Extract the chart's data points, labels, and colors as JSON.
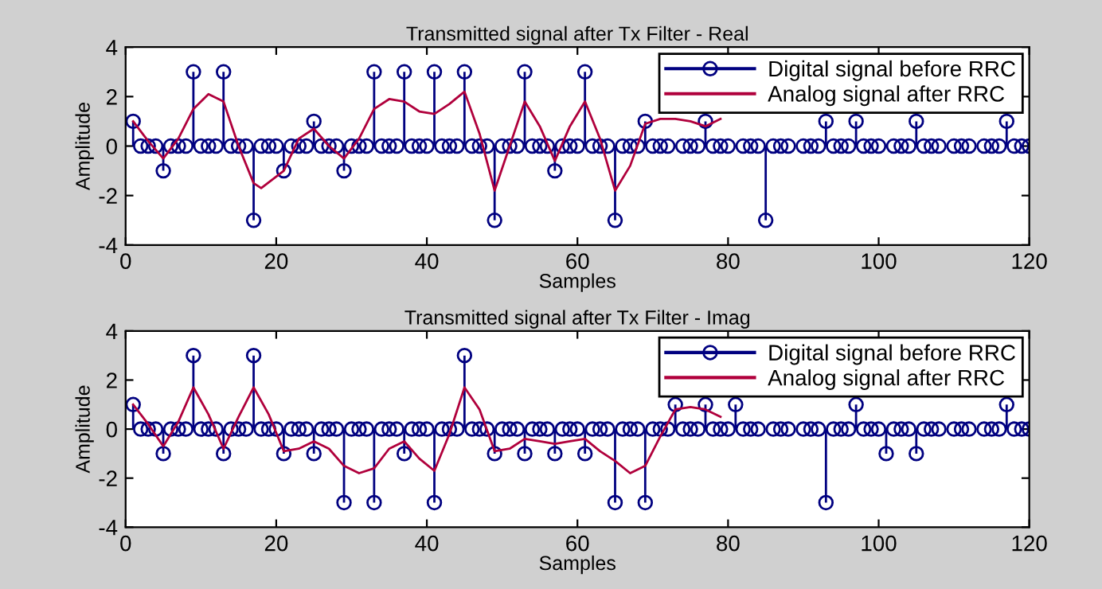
{
  "chart_data": [
    {
      "type": "lollipop",
      "title": "Transmitted signal after Tx Filter - Real",
      "xlabel": "Samples",
      "ylabel": "Amplitude",
      "xlim": [
        0,
        120
      ],
      "xticks": [
        0,
        20,
        40,
        60,
        80,
        100,
        120
      ],
      "ylim": [
        -4,
        4
      ],
      "yticks": [
        -4,
        -2,
        0,
        2,
        4
      ],
      "legend": "top right",
      "series": [
        {
          "name": "Digital signal before RRC",
          "marker": "circle",
          "color": "#000080",
          "x": [
            1,
            2,
            3,
            4,
            5,
            6,
            7,
            8,
            9,
            10,
            11,
            12,
            13,
            14,
            15,
            16,
            17,
            18,
            19,
            20,
            21,
            22,
            23,
            24,
            25,
            26,
            27,
            28,
            29,
            30,
            31,
            32,
            33,
            34,
            35,
            36,
            37,
            38,
            39,
            40,
            41,
            42,
            43,
            44,
            45,
            46,
            47,
            48,
            49,
            50,
            51,
            52,
            53,
            54,
            55,
            56,
            57,
            58,
            59,
            60,
            61,
            62,
            63,
            64,
            65,
            66,
            67,
            68,
            69,
            70,
            71,
            72,
            73,
            74,
            75,
            76,
            77,
            78,
            79,
            80,
            81,
            82,
            83,
            84,
            85,
            86,
            87,
            88,
            89,
            90,
            91,
            92,
            93,
            94,
            95,
            96,
            97,
            98,
            99,
            100,
            101,
            102,
            103,
            104,
            105,
            106,
            107,
            108,
            109,
            110,
            111,
            112,
            113,
            114,
            115,
            116,
            117,
            118,
            119,
            120
          ],
          "values": [
            1,
            0,
            0,
            0,
            -1,
            0,
            0,
            0,
            3,
            0,
            0,
            0,
            3,
            0,
            0,
            0,
            -3,
            0,
            0,
            0,
            -1,
            0,
            0,
            0,
            1,
            0,
            0,
            0,
            -1,
            0,
            0,
            0,
            3,
            0,
            0,
            0,
            3,
            0,
            0,
            0,
            3,
            0,
            0,
            0,
            3,
            0,
            0,
            0,
            -3,
            0,
            0,
            0,
            3,
            0,
            0,
            0,
            -1,
            0,
            0,
            0,
            3,
            0,
            0,
            0,
            -3,
            0,
            0,
            0,
            1,
            0,
            0,
            0,
            null,
            0,
            0,
            0,
            1,
            0,
            0,
            0,
            null,
            0,
            0,
            0,
            -3,
            0,
            0,
            0,
            null,
            0,
            0,
            0,
            1,
            0,
            0,
            0,
            1,
            0,
            0,
            0,
            null,
            0,
            0,
            0,
            1,
            0,
            0,
            0,
            null,
            0,
            0,
            0,
            null,
            0,
            0,
            0,
            1,
            0,
            0,
            0
          ]
        },
        {
          "name": "Analog signal after RRC",
          "type": "line",
          "color": "#b0003c",
          "x": [
            1,
            3,
            5,
            7,
            9,
            11,
            13,
            15,
            17,
            18,
            21,
            23,
            25,
            27,
            29,
            31,
            33,
            35,
            37,
            39,
            41,
            43,
            45,
            47,
            49,
            51,
            53,
            55,
            57,
            59,
            61,
            63,
            65,
            67,
            69,
            71,
            73,
            75,
            77,
            79
          ],
          "values": [
            1,
            0.2,
            -0.5,
            0.3,
            1.5,
            2.1,
            1.8,
            0,
            -1.5,
            -1.7,
            -1,
            0.3,
            0.7,
            0,
            -0.5,
            0.3,
            1.5,
            1.9,
            1.8,
            1.4,
            1.3,
            1.7,
            2.2,
            0.5,
            -1.8,
            0,
            1.8,
            0.8,
            -0.6,
            0.8,
            1.8,
            0.3,
            -1.8,
            -0.8,
            0.9,
            1.1,
            1.1,
            1.0,
            0.8,
            1.1
          ]
        }
      ]
    },
    {
      "type": "lollipop",
      "title": "Transmitted signal after Tx Filter - Imag",
      "xlabel": "Samples",
      "ylabel": "Amplitude",
      "xlim": [
        0,
        120
      ],
      "xticks": [
        0,
        20,
        40,
        60,
        80,
        100,
        120
      ],
      "ylim": [
        -4,
        4
      ],
      "yticks": [
        -4,
        -2,
        0,
        2,
        4
      ],
      "legend": "top right",
      "series": [
        {
          "name": "Digital signal before RRC",
          "marker": "circle",
          "color": "#000080",
          "x": [
            1,
            2,
            3,
            4,
            5,
            6,
            7,
            8,
            9,
            10,
            11,
            12,
            13,
            14,
            15,
            16,
            17,
            18,
            19,
            20,
            21,
            22,
            23,
            24,
            25,
            26,
            27,
            28,
            29,
            30,
            31,
            32,
            33,
            34,
            35,
            36,
            37,
            38,
            39,
            40,
            41,
            42,
            43,
            44,
            45,
            46,
            47,
            48,
            49,
            50,
            51,
            52,
            53,
            54,
            55,
            56,
            57,
            58,
            59,
            60,
            61,
            62,
            63,
            64,
            65,
            66,
            67,
            68,
            69,
            70,
            71,
            72,
            73,
            74,
            75,
            76,
            77,
            78,
            79,
            80,
            81,
            82,
            83,
            84,
            85,
            86,
            87,
            88,
            89,
            90,
            91,
            92,
            93,
            94,
            95,
            96,
            97,
            98,
            99,
            100,
            101,
            102,
            103,
            104,
            105,
            106,
            107,
            108,
            109,
            110,
            111,
            112,
            113,
            114,
            115,
            116,
            117,
            118,
            119,
            120
          ],
          "values": [
            1,
            0,
            0,
            0,
            -1,
            0,
            0,
            0,
            3,
            0,
            0,
            0,
            -1,
            0,
            0,
            0,
            3,
            0,
            0,
            0,
            -1,
            0,
            0,
            0,
            -1,
            0,
            0,
            0,
            -3,
            0,
            0,
            0,
            -3,
            0,
            0,
            0,
            -1,
            0,
            0,
            0,
            -3,
            0,
            0,
            0,
            3,
            0,
            0,
            0,
            -1,
            0,
            0,
            0,
            -1,
            0,
            0,
            0,
            -1,
            0,
            0,
            0,
            -1,
            0,
            0,
            0,
            -3,
            0,
            0,
            0,
            -3,
            0,
            0,
            0,
            1,
            0,
            0,
            0,
            1,
            0,
            0,
            0,
            1,
            0,
            0,
            0,
            null,
            0,
            0,
            0,
            null,
            0,
            0,
            0,
            -3,
            0,
            0,
            0,
            1,
            0,
            0,
            0,
            -1,
            0,
            0,
            0,
            -1,
            0,
            0,
            0,
            null,
            0,
            0,
            0,
            null,
            0,
            0,
            0,
            1,
            0,
            0,
            0
          ]
        },
        {
          "name": "Analog signal after RRC",
          "type": "line",
          "color": "#b0003c",
          "x": [
            1,
            3,
            5,
            7,
            9,
            11,
            13,
            15,
            17,
            19,
            21,
            23,
            25,
            27,
            29,
            31,
            33,
            35,
            37,
            39,
            41,
            43,
            45,
            47,
            49,
            51,
            53,
            55,
            57,
            59,
            61,
            63,
            65,
            67,
            69,
            71,
            73,
            75,
            77,
            79
          ],
          "values": [
            1,
            0.2,
            -0.7,
            0.3,
            1.7,
            0.6,
            -0.8,
            0.5,
            1.7,
            0.6,
            -0.9,
            -0.8,
            -0.5,
            -0.8,
            -1.5,
            -1.8,
            -1.6,
            -0.8,
            -0.5,
            -1.2,
            -1.7,
            -0.2,
            1.7,
            0.8,
            -0.9,
            -0.8,
            -0.4,
            -0.5,
            -0.6,
            -0.5,
            -0.4,
            -0.9,
            -1.3,
            -1.8,
            -1.5,
            -0.3,
            0.8,
            0.9,
            0.8,
            0.5
          ]
        }
      ]
    }
  ]
}
